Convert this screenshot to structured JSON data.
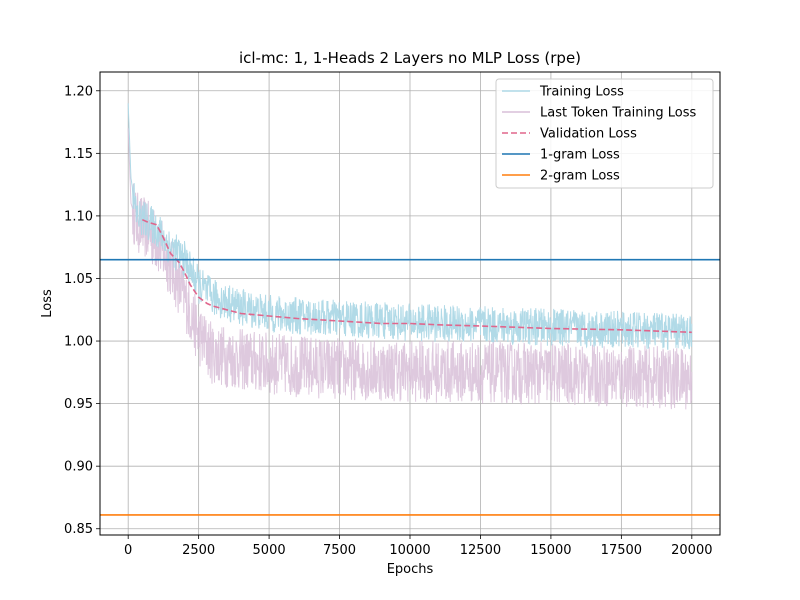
{
  "chart_data": {
    "type": "line",
    "title": "icl-mc: 1, 1-Heads 2 Layers no MLP  Loss (rpe)",
    "xlabel": "Epochs",
    "ylabel": "Loss",
    "xlim": [
      -1000,
      21000
    ],
    "ylim": [
      0.845,
      1.215
    ],
    "xticks": [
      0,
      2500,
      5000,
      7500,
      10000,
      12500,
      15000,
      17500,
      20000
    ],
    "yticks": [
      0.85,
      0.9,
      0.95,
      1.0,
      1.05,
      1.1,
      1.15,
      1.2
    ],
    "grid": true,
    "legend_position": "top-right",
    "series": [
      {
        "name": "Training Loss",
        "color": "#add8e6",
        "style": "solid",
        "noisy": true,
        "noise_band": 0.03,
        "x": [
          0,
          100,
          300,
          600,
          1000,
          1500,
          2000,
          2500,
          3000,
          4000,
          5000,
          6000,
          7500,
          10000,
          12500,
          15000,
          17500,
          20000
        ],
        "y": [
          1.19,
          1.13,
          1.1,
          1.097,
          1.09,
          1.075,
          1.065,
          1.045,
          1.035,
          1.027,
          1.022,
          1.02,
          1.018,
          1.015,
          1.013,
          1.011,
          1.009,
          1.007
        ]
      },
      {
        "name": "Last Token Training Loss",
        "color": "#d8bfd8",
        "style": "solid",
        "noisy": true,
        "noise_band": 0.05,
        "x": [
          0,
          100,
          300,
          600,
          1000,
          1500,
          2000,
          2500,
          3000,
          4000,
          5000,
          6000,
          7500,
          10000,
          12500,
          15000,
          17500,
          20000
        ],
        "y": [
          1.17,
          1.11,
          1.095,
          1.09,
          1.08,
          1.06,
          1.035,
          1.005,
          0.99,
          0.985,
          0.982,
          0.98,
          0.978,
          0.976,
          0.975,
          0.974,
          0.972,
          0.97
        ]
      },
      {
        "name": "Validation Loss",
        "color": "#e0668c",
        "style": "dashed",
        "x": [
          500,
          700,
          1000,
          1200,
          1500,
          1800,
          2000,
          2200,
          2500,
          2800,
          3000,
          3500,
          4000,
          5000,
          6000,
          7500,
          9000,
          10000,
          11000,
          12500,
          15000,
          17500,
          20000
        ],
        "y": [
          1.097,
          1.095,
          1.093,
          1.085,
          1.07,
          1.063,
          1.055,
          1.045,
          1.035,
          1.03,
          1.028,
          1.025,
          1.022,
          1.02,
          1.018,
          1.016,
          1.014,
          1.014,
          1.013,
          1.012,
          1.01,
          1.009,
          1.007
        ]
      },
      {
        "name": "1-gram Loss",
        "color": "#1f77b4",
        "style": "hline",
        "y": 1.065
      },
      {
        "name": "2-gram Loss",
        "color": "#ff7f0e",
        "style": "hline",
        "y": 0.861
      }
    ]
  }
}
